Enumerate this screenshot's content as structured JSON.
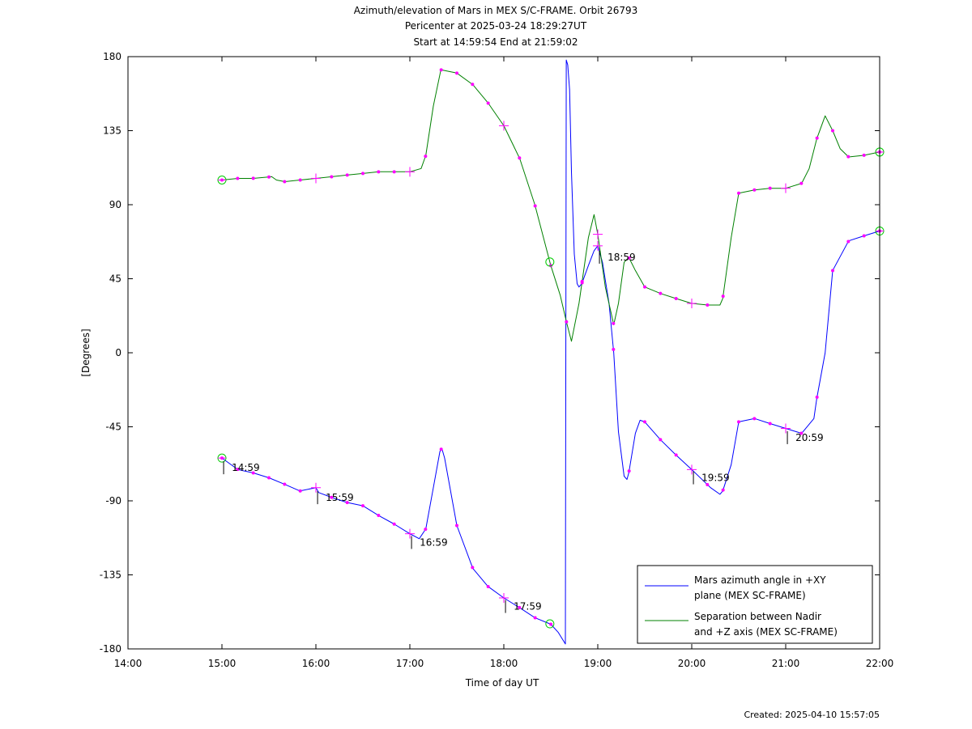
{
  "chart_data": {
    "type": "line",
    "title": [
      "Azimuth/elevation of Mars in MEX S/C-FRAME.  Orbit 26793",
      "Pericenter at 2025-03-24 18:29:27UT",
      "Start at 14:59:54 End at 21:59:02"
    ],
    "xlabel": "Time of day UT",
    "ylabel": "[Degrees]",
    "xlim": [
      "14:00",
      "22:00"
    ],
    "ylim": [
      -180,
      180
    ],
    "x_ticks": [
      "14:00",
      "15:00",
      "16:00",
      "17:00",
      "18:00",
      "19:00",
      "20:00",
      "21:00",
      "22:00"
    ],
    "y_ticks": [
      180,
      135,
      90,
      45,
      0,
      -45,
      -90,
      -135,
      -180
    ],
    "grid": false,
    "legend_position": "bottom-right",
    "colors": {
      "azimuth": "#0000ff",
      "separation": "#008000",
      "marker": "#ff00ff",
      "endpoint": "#00cc00"
    },
    "series": [
      {
        "name": "Mars azimuth angle in +XY plane (MEX SC-FRAME)",
        "legend_lines": [
          "Mars azimuth angle in +XY",
          "plane (MEX SC-FRAME)"
        ],
        "x_hours": [
          15.0,
          15.17,
          15.33,
          15.5,
          15.67,
          15.83,
          16.0,
          16.03,
          16.17,
          16.33,
          16.5,
          16.67,
          16.83,
          17.0,
          17.1,
          17.17,
          17.25,
          17.32,
          17.34,
          17.37,
          17.5,
          17.67,
          17.83,
          18.0,
          18.17,
          18.33,
          18.5,
          18.58,
          18.655,
          18.665,
          18.68,
          18.7,
          18.72,
          18.75,
          18.78,
          18.8,
          18.83,
          18.9,
          18.96,
          19.0,
          19.05,
          19.12,
          19.17,
          19.22,
          19.28,
          19.31,
          19.33,
          19.4,
          19.45,
          19.5,
          19.67,
          19.83,
          20.0,
          20.2,
          20.3,
          20.33,
          20.42,
          20.5,
          20.67,
          20.83,
          21.0,
          21.17,
          21.3,
          21.33,
          21.42,
          21.5,
          21.67,
          21.83,
          22.0
        ],
        "y": [
          -64,
          -71,
          -73,
          -76,
          -80,
          -84,
          -82,
          -85,
          -88,
          -91,
          -93,
          -99,
          -104,
          -110,
          -113,
          -107,
          -82,
          -60,
          -58,
          -64,
          -105,
          -131,
          -142,
          -149,
          -155,
          -161,
          -165,
          -170,
          -177,
          178,
          175,
          160,
          110,
          60,
          42,
          40,
          42,
          53,
          62,
          65,
          55,
          30,
          0,
          -48,
          -75,
          -77,
          -73,
          -49,
          -41,
          -42,
          -53,
          -62,
          -71,
          -82,
          -86,
          -84,
          -68,
          -42,
          -40,
          -43,
          -46,
          -49,
          -40,
          -28,
          0,
          50,
          68,
          71,
          74
        ]
      },
      {
        "name": "Separation between Nadir and +Z axis (MEX SC-FRAME)",
        "legend_lines": [
          "Separation between Nadir",
          "and +Z axis (MEX SC-FRAME)"
        ],
        "x_hours": [
          15.0,
          15.17,
          15.33,
          15.53,
          15.58,
          15.67,
          15.83,
          16.0,
          16.17,
          16.33,
          16.5,
          16.67,
          16.83,
          17.0,
          17.12,
          17.17,
          17.25,
          17.33,
          17.5,
          17.67,
          17.83,
          18.0,
          18.17,
          18.33,
          18.5,
          18.6,
          18.67,
          18.72,
          18.8,
          18.9,
          18.96,
          19.0,
          19.08,
          19.17,
          19.22,
          19.28,
          19.33,
          19.4,
          19.5,
          19.67,
          19.83,
          20.0,
          20.17,
          20.3,
          20.33,
          20.42,
          20.5,
          20.67,
          20.83,
          21.0,
          21.17,
          21.25,
          21.33,
          21.42,
          21.5,
          21.58,
          21.67,
          21.83,
          22.0
        ],
        "y": [
          105,
          106,
          106,
          107,
          105,
          104,
          105,
          106,
          107,
          108,
          109,
          110,
          110,
          110,
          112,
          120,
          150,
          172,
          170,
          163,
          152,
          138,
          118,
          90,
          53,
          35,
          18,
          7,
          30,
          70,
          84,
          72,
          40,
          17,
          30,
          55,
          58,
          50,
          40,
          36,
          33,
          30,
          29,
          29,
          33,
          70,
          97,
          99,
          100,
          100,
          103,
          112,
          130,
          144,
          135,
          124,
          119,
          120,
          122
        ]
      }
    ],
    "time_labels": [
      "14:59",
      "15:59",
      "16:59",
      "17:59",
      "18:59",
      "19:59",
      "20:59"
    ],
    "created": "Created: 2025-04-10 15:57:05"
  }
}
